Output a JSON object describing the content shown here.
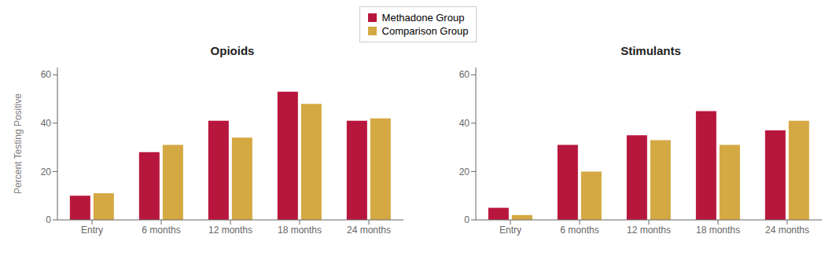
{
  "chart_data": [
    {
      "type": "bar",
      "title": "Opioids",
      "categories": [
        "Entry",
        "6 months",
        "12 months",
        "18 months",
        "24 months"
      ],
      "series": [
        {
          "name": "Methadone Group",
          "color": "#b8173d",
          "values": [
            10,
            28,
            41,
            53,
            41
          ]
        },
        {
          "name": "Comparison Group",
          "color": "#d4a843",
          "values": [
            11,
            31,
            34,
            48,
            42
          ]
        }
      ],
      "y_label": "Percent Testing Positive",
      "ylim": [
        0,
        63
      ],
      "yticks": [
        0,
        20,
        40,
        60
      ],
      "grid": false,
      "legend": "top"
    },
    {
      "type": "bar",
      "title": "Stimulants",
      "categories": [
        "Entry",
        "6 months",
        "12 months",
        "18 months",
        "24 months"
      ],
      "series": [
        {
          "name": "Methadone Group",
          "color": "#b8173d",
          "values": [
            5,
            31,
            35,
            45,
            37
          ]
        },
        {
          "name": "Comparison Group",
          "color": "#d4a843",
          "values": [
            2,
            20,
            33,
            31,
            41
          ]
        }
      ],
      "ylim": [
        0,
        63
      ],
      "yticks": [
        0,
        20,
        40,
        60
      ],
      "grid": false
    }
  ]
}
